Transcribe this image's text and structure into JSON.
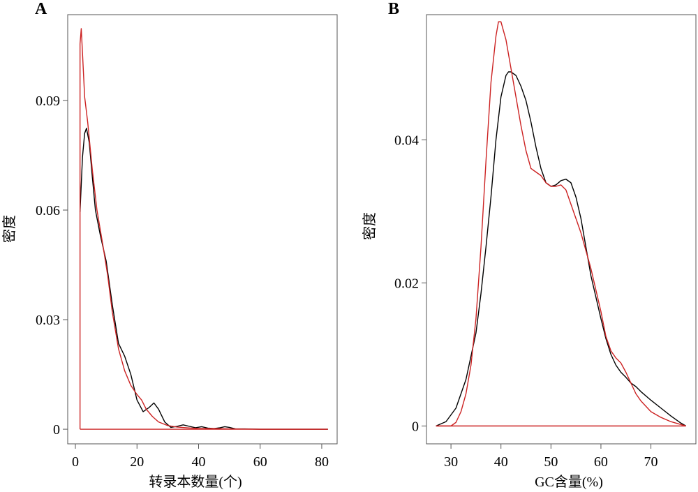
{
  "chart_data": [
    {
      "panel": "A",
      "type": "line",
      "xlabel": "转录本数量(个)",
      "ylabel": "密度",
      "xlim": [
        -2.5,
        85
      ],
      "ylim": [
        -0.004,
        0.1135
      ],
      "xticks": [
        0,
        20,
        40,
        60,
        80
      ],
      "xtick_labels": [
        "0",
        "20",
        "40",
        "60",
        "80"
      ],
      "yticks": [
        0,
        0.03,
        0.06,
        0.09
      ],
      "ytick_labels": [
        "0",
        "0.03",
        "0.06",
        "0.09"
      ],
      "grid": false,
      "legend": "none",
      "series": [
        {
          "color": "#000000",
          "x": [
            1.5,
            2.3,
            3.0,
            3.6,
            4.5,
            5.5,
            6.5,
            8.0,
            10.0,
            12.0,
            14.0,
            16.0,
            18.0,
            20.0,
            22.0,
            24.0,
            25.5,
            27.0,
            29.0,
            31.0,
            33.0,
            35.0,
            37.0,
            39.0,
            41.0,
            43.0,
            45.0,
            47.0,
            48.5,
            50.0,
            52.0,
            55.0,
            60.0,
            65.0,
            70.0,
            75.0,
            82.0
          ],
          "y": [
            0.0595,
            0.0745,
            0.081,
            0.0824,
            0.0785,
            0.069,
            0.06,
            0.0535,
            0.046,
            0.034,
            0.0235,
            0.02,
            0.015,
            0.008,
            0.0048,
            0.006,
            0.0072,
            0.0055,
            0.002,
            0.0005,
            0.0008,
            0.0012,
            0.0008,
            0.0004,
            0.0007,
            0.0003,
            0.0002,
            0.0004,
            0.0007,
            0.0005,
            0.0001,
            0.0001,
            0.0,
            0.0,
            0.0,
            0.0,
            0.0
          ]
        },
        {
          "color": "#cc2222",
          "x": [
            1.5,
            1.5,
            1.9,
            2.3,
            3.0,
            4.0,
            5.5,
            7.0,
            9.0,
            10.5,
            12.0,
            14.0,
            16.0,
            18.0,
            20.0,
            21.5,
            23.0,
            25.0,
            27.0,
            30.0,
            33.0,
            36.0,
            40.0,
            45.0,
            50.0,
            60.0,
            70.0,
            82.0
          ],
          "y": [
            0.0,
            0.1055,
            0.1097,
            0.103,
            0.091,
            0.084,
            0.071,
            0.06,
            0.05,
            0.042,
            0.032,
            0.022,
            0.016,
            0.012,
            0.0095,
            0.008,
            0.0055,
            0.0035,
            0.002,
            0.001,
            0.0006,
            0.0004,
            0.0002,
            0.0002,
            0.0001,
            0.0,
            0.0,
            0.0
          ]
        }
      ]
    },
    {
      "panel": "B",
      "type": "line",
      "xlabel": "GC含量(%)",
      "ylabel": "密度",
      "xlim": [
        25.1,
        79
      ],
      "ylim": [
        -0.0025,
        0.0575
      ],
      "xticks": [
        30,
        40,
        50,
        60,
        70
      ],
      "xtick_labels": [
        "30",
        "40",
        "50",
        "60",
        "70"
      ],
      "yticks": [
        0,
        0.02,
        0.04
      ],
      "ytick_labels": [
        "0",
        "0.02",
        "0.04"
      ],
      "grid": false,
      "legend": "none",
      "series": [
        {
          "color": "#000000",
          "x": [
            27,
            29,
            31,
            33,
            35,
            36,
            37,
            38,
            39,
            40,
            41,
            41.5,
            42,
            43,
            44,
            45,
            46,
            47,
            48,
            49,
            50,
            51,
            52,
            53,
            54,
            55,
            56,
            57,
            58,
            59,
            60,
            61,
            62,
            63,
            64,
            65,
            66,
            67,
            68,
            70,
            72,
            74,
            76,
            77
          ],
          "y": [
            0.0,
            0.0006,
            0.0025,
            0.0065,
            0.013,
            0.0185,
            0.025,
            0.032,
            0.04,
            0.046,
            0.049,
            0.0495,
            0.0495,
            0.049,
            0.0475,
            0.0455,
            0.0425,
            0.039,
            0.036,
            0.034,
            0.0335,
            0.0337,
            0.0343,
            0.0345,
            0.034,
            0.032,
            0.029,
            0.025,
            0.021,
            0.018,
            0.015,
            0.0122,
            0.01,
            0.0085,
            0.0075,
            0.0068,
            0.006,
            0.0055,
            0.0048,
            0.0036,
            0.0025,
            0.0014,
            0.0004,
            0.0
          ]
        },
        {
          "color": "#cc2222",
          "x": [
            27,
            30,
            31,
            32,
            33,
            34,
            35,
            36,
            37,
            38,
            39,
            39.5,
            40,
            41,
            42,
            43,
            44,
            45,
            46,
            47,
            48,
            49,
            50,
            51,
            52,
            53,
            54,
            55,
            56,
            57,
            58,
            59,
            60,
            61,
            62,
            63,
            64,
            65,
            66,
            67,
            68,
            70,
            72,
            74,
            76,
            77
          ],
          "y": [
            0.0,
            0.0,
            0.0005,
            0.002,
            0.0045,
            0.0085,
            0.015,
            0.025,
            0.037,
            0.048,
            0.0545,
            0.0565,
            0.0565,
            0.054,
            0.05,
            0.046,
            0.042,
            0.0385,
            0.036,
            0.0355,
            0.035,
            0.034,
            0.0335,
            0.0335,
            0.0337,
            0.033,
            0.031,
            0.029,
            0.027,
            0.0245,
            0.022,
            0.019,
            0.016,
            0.0125,
            0.0105,
            0.0095,
            0.0088,
            0.0075,
            0.006,
            0.0045,
            0.0035,
            0.002,
            0.0012,
            0.0006,
            0.0002,
            0.0
          ]
        },
        {
          "color": "#cc2222",
          "x": [
            27,
            77
          ],
          "y": [
            0.0,
            0.0
          ]
        }
      ]
    }
  ]
}
